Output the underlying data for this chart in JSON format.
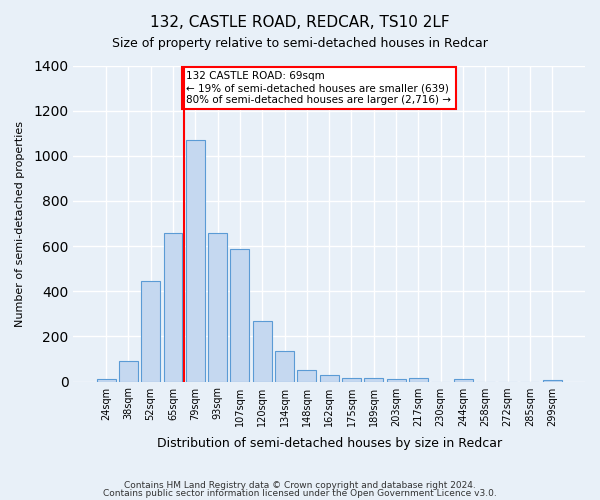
{
  "title": "132, CASTLE ROAD, REDCAR, TS10 2LF",
  "subtitle": "Size of property relative to semi-detached houses in Redcar",
  "xlabel": "Distribution of semi-detached houses by size in Redcar",
  "ylabel": "Number of semi-detached properties",
  "categories": [
    "24sqm",
    "38sqm",
    "52sqm",
    "65sqm",
    "79sqm",
    "93sqm",
    "107sqm",
    "120sqm",
    "134sqm",
    "148sqm",
    "162sqm",
    "175sqm",
    "189sqm",
    "203sqm",
    "217sqm",
    "230sqm",
    "244sqm",
    "258sqm",
    "272sqm",
    "285sqm",
    "299sqm"
  ],
  "values": [
    10,
    90,
    445,
    660,
    1070,
    660,
    585,
    270,
    135,
    50,
    30,
    15,
    15,
    10,
    15,
    0,
    10,
    0,
    0,
    0,
    5
  ],
  "bar_color": "#c5d8f0",
  "bar_edge_color": "#5b9bd5",
  "property_size": 69,
  "property_label": "132 CASTLE ROAD: 69sqm",
  "pct_smaller": 19,
  "pct_larger": 80,
  "n_smaller": 639,
  "n_larger": 2716,
  "vline_x": 2,
  "ylim": [
    0,
    1400
  ],
  "yticks": [
    0,
    200,
    400,
    600,
    800,
    1000,
    1200,
    1400
  ],
  "footer1": "Contains HM Land Registry data © Crown copyright and database right 2024.",
  "footer2": "Contains public sector information licensed under the Open Government Licence v3.0.",
  "background_color": "#e8f0f8",
  "plot_background": "#e8f0f8",
  "grid_color": "#ffffff"
}
